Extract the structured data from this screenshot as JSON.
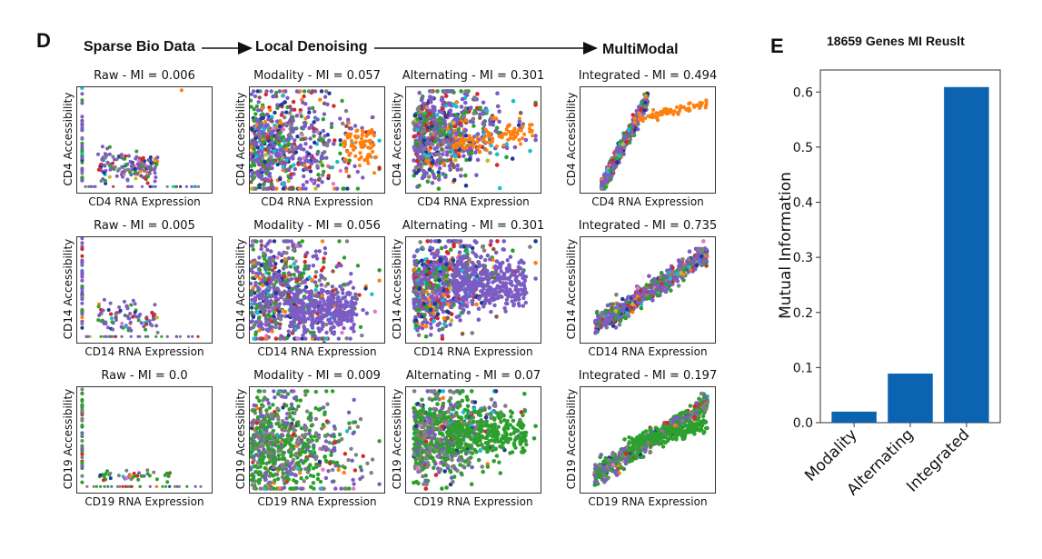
{
  "panel_d": {
    "letter": "D",
    "steps": [
      "Sparse Bio Data",
      "Local Denoising",
      "MultiModal"
    ],
    "rows": [
      {
        "ylabel": "CD4 Accessibility",
        "xlabel": "CD4 RNA Expression",
        "cells": [
          {
            "title": "Raw - MI = 0.006",
            "method": "Raw",
            "mi": 0.006
          },
          {
            "title": "Modality - MI = 0.057",
            "method": "Modality",
            "mi": 0.057
          },
          {
            "title": "Alternating - MI = 0.301",
            "method": "Alternating",
            "mi": 0.301
          },
          {
            "title": "Integrated - MI = 0.494",
            "method": "Integrated",
            "mi": 0.494
          }
        ]
      },
      {
        "ylabel": "CD14 Accessibility",
        "xlabel": "CD14 RNA Expression",
        "cells": [
          {
            "title": "Raw - MI = 0.005",
            "method": "Raw",
            "mi": 0.005
          },
          {
            "title": "Modality - MI = 0.056",
            "method": "Modality",
            "mi": 0.056
          },
          {
            "title": "Alternating - MI = 0.301",
            "method": "Alternating",
            "mi": 0.301
          },
          {
            "title": "Integrated - MI = 0.735",
            "method": "Integrated",
            "mi": 0.735
          }
        ]
      },
      {
        "ylabel": "CD19 Accessibility",
        "xlabel": "CD19 RNA Expression",
        "cells": [
          {
            "title": "Raw - MI = 0.0",
            "method": "Raw",
            "mi": 0.0
          },
          {
            "title": "Modality - MI = 0.009",
            "method": "Modality",
            "mi": 0.009
          },
          {
            "title": "Alternating - MI = 0.07",
            "method": "Alternating",
            "mi": 0.07
          },
          {
            "title": "Integrated - MI = 0.197",
            "method": "Integrated",
            "mi": 0.197
          }
        ]
      }
    ],
    "point_colors": [
      "#7b5cc4",
      "#2ca02c",
      "#808080",
      "#d62728",
      "#ff7f0e",
      "#1f3a93",
      "#17becf",
      "#8c564b",
      "#e377c2",
      "#bcbd22"
    ]
  },
  "panel_e": {
    "letter": "E"
  },
  "chart_data": {
    "type": "bar",
    "title": "18659 Genes MI Reuslt",
    "categories": [
      "Modality",
      "Alternating",
      "Integrated"
    ],
    "values": [
      0.02,
      0.089,
      0.609
    ],
    "ylabel": "Mutual Information",
    "xlabel": "",
    "ylim": [
      0,
      0.64
    ],
    "yticks": [
      "0.0",
      "0.1",
      "0.2",
      "0.3",
      "0.4",
      "0.5",
      "0.6"
    ],
    "bar_color": "#0c63b0",
    "grid": false
  }
}
